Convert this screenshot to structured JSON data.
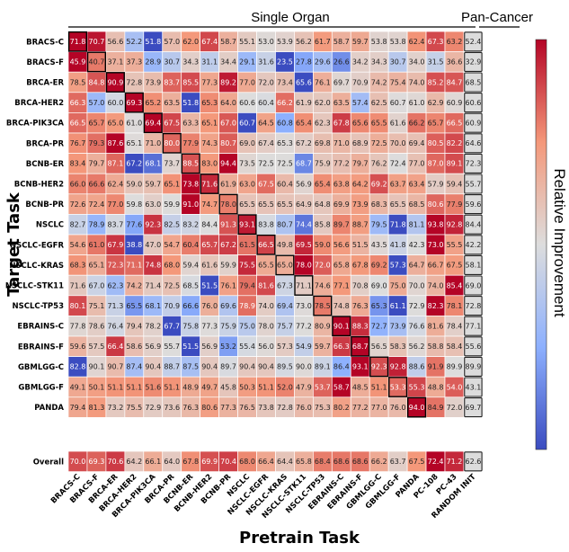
{
  "chart_data": {
    "type": "heatmap",
    "group_labels": {
      "single": "Single Organ",
      "pan": "Pan-Cancer"
    },
    "xlabel": "Pretrain Task",
    "ylabel": "Target Task",
    "colorbar_label": "Relative Improvement",
    "columns": [
      "BRACS-C",
      "BRACS-F",
      "BRCA-ER",
      "BRCA-HER2",
      "BRCA-PIK3CA",
      "BRCA-PR",
      "BCNB-ER",
      "BCNB-HER2",
      "BCNB-PR",
      "NSCLC",
      "NSCLC-EGFR",
      "NSCLC-KRAS",
      "NSCLC-STK11",
      "NSCLC-TP53",
      "EBRAINS-C",
      "EBRAINS-F",
      "GBMLGG-C",
      "GBMLGG-F",
      "PANDA",
      "PC-108",
      "PC-43",
      "RANDOM INIT"
    ],
    "rows": [
      "BRACS-C",
      "BRACS-F",
      "BRCA-ER",
      "BRCA-HER2",
      "BRCA-PIK3CA",
      "BRCA-PR",
      "BCNB-ER",
      "BCNB-HER2",
      "BCNB-PR",
      "NSCLC",
      "NSCLC-EGFR",
      "NSCLC-KRAS",
      "NSCLC-STK11",
      "NSCLC-TP53",
      "EBRAINS-C",
      "EBRAINS-F",
      "GBMLGG-C",
      "GBMLGG-F",
      "PANDA",
      "Overall"
    ],
    "values": [
      [
        71.8,
        70.7,
        56.6,
        52.2,
        51.8,
        57.0,
        62.0,
        67.4,
        58.7,
        55.1,
        53.0,
        53.9,
        56.2,
        61.7,
        58.7,
        59.7,
        53.8,
        53.8,
        62.4,
        67.3,
        63.2,
        52.4
      ],
      [
        45.9,
        40.7,
        37.1,
        37.3,
        28.9,
        30.7,
        34.3,
        31.1,
        34.4,
        29.1,
        31.6,
        23.5,
        27.8,
        29.6,
        26.6,
        34.2,
        34.3,
        30.7,
        34.0,
        31.5,
        36.6,
        32.9
      ],
      [
        78.5,
        84.8,
        90.9,
        72.8,
        73.9,
        83.7,
        85.5,
        77.3,
        89.2,
        77.0,
        72.0,
        73.4,
        65.6,
        76.1,
        69.7,
        70.9,
        74.2,
        75.4,
        74.0,
        85.2,
        84.7,
        68.5
      ],
      [
        66.3,
        57.0,
        60.0,
        69.3,
        65.2,
        63.5,
        51.8,
        65.3,
        64.0,
        60.6,
        60.4,
        66.2,
        61.9,
        62.0,
        63.5,
        57.4,
        62.5,
        60.7,
        61.0,
        62.9,
        60.9,
        60.6
      ],
      [
        66.5,
        65.7,
        65.0,
        61.0,
        69.4,
        67.5,
        63.3,
        65.1,
        67.0,
        60.7,
        64.5,
        60.8,
        65.4,
        62.3,
        67.8,
        65.6,
        65.5,
        61.6,
        66.2,
        65.7,
        66.5,
        60.9
      ],
      [
        76.7,
        79.3,
        87.6,
        65.1,
        71.0,
        80.0,
        77.9,
        74.3,
        80.7,
        69.0,
        67.4,
        65.3,
        67.2,
        69.8,
        71.0,
        68.9,
        72.5,
        70.0,
        69.4,
        80.5,
        82.2,
        64.6
      ],
      [
        83.4,
        79.7,
        87.1,
        67.2,
        68.1,
        73.7,
        88.5,
        83.0,
        94.4,
        73.5,
        72.5,
        72.5,
        68.7,
        75.9,
        77.2,
        79.7,
        76.2,
        72.4,
        77.0,
        87.0,
        89.1,
        72.3
      ],
      [
        66.0,
        66.6,
        62.4,
        59.0,
        59.7,
        65.1,
        73.8,
        71.6,
        61.9,
        63.0,
        67.5,
        60.4,
        56.9,
        65.4,
        63.8,
        64.2,
        69.2,
        63.7,
        63.4,
        57.9,
        59.4,
        55.7
      ],
      [
        72.6,
        72.4,
        77.0,
        59.8,
        63.0,
        59.9,
        91.0,
        74.7,
        78.0,
        65.5,
        65.5,
        65.5,
        64.9,
        64.8,
        69.9,
        73.9,
        68.3,
        65.5,
        68.5,
        80.6,
        77.9,
        59.6
      ],
      [
        82.7,
        78.9,
        83.7,
        77.6,
        92.3,
        82.5,
        83.2,
        84.4,
        91.3,
        93.1,
        83.8,
        80.7,
        74.4,
        85.8,
        89.7,
        88.7,
        79.5,
        71.8,
        81.1,
        93.8,
        92.8,
        84.4
      ],
      [
        54.6,
        61.0,
        67.9,
        38.8,
        47.0,
        54.7,
        60.4,
        65.7,
        67.2,
        61.5,
        66.5,
        49.8,
        69.5,
        59.0,
        56.6,
        51.5,
        43.5,
        41.8,
        42.3,
        73.0,
        55.5,
        42.2
      ],
      [
        68.3,
        65.1,
        72.3,
        71.1,
        74.8,
        68.0,
        59.4,
        61.6,
        59.9,
        75.5,
        65.5,
        65.0,
        78.0,
        72.0,
        65.8,
        67.8,
        69.2,
        57.3,
        64.7,
        66.7,
        67.5,
        58.1
      ],
      [
        71.6,
        67.0,
        62.3,
        74.2,
        71.4,
        72.5,
        68.5,
        51.5,
        76.1,
        79.4,
        81.6,
        67.3,
        71.1,
        74.6,
        77.1,
        70.8,
        69.0,
        75.0,
        70.0,
        74.0,
        85.4,
        69.0
      ],
      [
        80.1,
        75.1,
        71.3,
        65.5,
        68.1,
        70.9,
        66.6,
        76.0,
        69.6,
        78.9,
        74.0,
        69.4,
        73.0,
        78.5,
        74.8,
        76.3,
        65.3,
        61.1,
        72.9,
        82.3,
        78.1,
        72.8
      ],
      [
        77.8,
        78.6,
        76.4,
        79.4,
        78.2,
        67.7,
        75.8,
        77.3,
        75.9,
        75.0,
        78.0,
        75.7,
        77.2,
        80.9,
        90.1,
        88.3,
        72.7,
        73.9,
        76.6,
        81.6,
        78.4,
        77.1
      ],
      [
        59.6,
        57.5,
        66.4,
        58.6,
        56.9,
        55.7,
        51.5,
        56.9,
        53.2,
        55.4,
        56.0,
        57.3,
        54.9,
        59.7,
        66.3,
        68.7,
        56.5,
        58.3,
        56.2,
        58.8,
        58.4,
        55.6
      ],
      [
        82.8,
        90.1,
        90.7,
        87.4,
        90.4,
        88.7,
        87.5,
        90.4,
        89.7,
        90.4,
        90.4,
        89.5,
        90.0,
        89.1,
        86.4,
        93.1,
        92.3,
        92.8,
        88.6,
        91.9,
        89.9,
        89.9
      ],
      [
        49.1,
        50.1,
        51.1,
        51.1,
        51.6,
        51.1,
        48.9,
        49.7,
        45.8,
        50.3,
        51.1,
        52.0,
        47.9,
        53.7,
        58.7,
        48.5,
        51.1,
        53.3,
        55.3,
        48.8,
        54.0,
        43.1
      ],
      [
        79.4,
        81.3,
        73.2,
        75.5,
        72.9,
        73.6,
        76.3,
        80.6,
        77.3,
        76.5,
        73.8,
        72.8,
        76.0,
        75.3,
        80.2,
        77.2,
        77.0,
        76.0,
        94.0,
        84.9,
        72.0,
        69.7
      ],
      [
        70.0,
        69.3,
        70.6,
        64.2,
        66.1,
        64.0,
        67.8,
        69.9,
        70.4,
        68.0,
        66.4,
        64.4,
        65.8,
        68.4,
        68.6,
        68.6,
        66.2,
        63.7,
        67.5,
        72.4,
        71.2,
        62.6
      ]
    ],
    "highlight_cells_rowcol": [
      [
        0,
        0
      ],
      [
        1,
        1
      ],
      [
        2,
        2
      ],
      [
        3,
        3
      ],
      [
        4,
        4
      ],
      [
        5,
        5
      ],
      [
        6,
        6
      ],
      [
        7,
        7
      ],
      [
        8,
        8
      ],
      [
        9,
        9
      ],
      [
        10,
        10
      ],
      [
        11,
        11
      ],
      [
        12,
        12
      ],
      [
        13,
        13
      ],
      [
        14,
        14
      ],
      [
        15,
        15
      ],
      [
        16,
        16
      ],
      [
        17,
        17
      ],
      [
        18,
        18
      ]
    ],
    "boxed_column": "RANDOM INIT",
    "colormap": {
      "low": "#3b4cc0",
      "mid": "#eeeeee",
      "high": "#b40426"
    }
  }
}
